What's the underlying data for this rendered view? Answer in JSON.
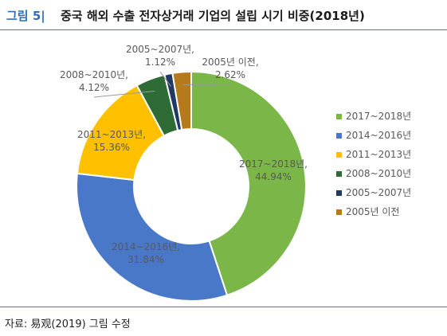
{
  "header": {
    "figure_label": "그림 5|",
    "title": "중국 해외 수출 전자상거래 기업의 설립 시기 비중(2018년)"
  },
  "source": "자료: 易观(2019) 그림 수정",
  "colors": {
    "rule": "#3b7bbf",
    "label": "#2e6fb7"
  },
  "chart_data": {
    "type": "pie",
    "donut": true,
    "slices": [
      {
        "label": "2017~2018년",
        "value": 44.94,
        "display": "44.94%",
        "color": "#7ab648"
      },
      {
        "label": "2014~2016년",
        "value": 31.84,
        "display": "31.84%",
        "color": "#4a78c8"
      },
      {
        "label": "2011~2013년",
        "value": 15.36,
        "display": "15.36%",
        "color": "#ffc000"
      },
      {
        "label": "2008~2010년",
        "value": 4.12,
        "display": "4.12%",
        "color": "#2f6b34"
      },
      {
        "label": "2005~2007년",
        "value": 1.12,
        "display": "1.12%",
        "color": "#1f3864"
      },
      {
        "label": "2005년 이전",
        "value": 2.62,
        "display": "2.62%",
        "color": "#b77a1a"
      }
    ],
    "legend_position": "right"
  }
}
